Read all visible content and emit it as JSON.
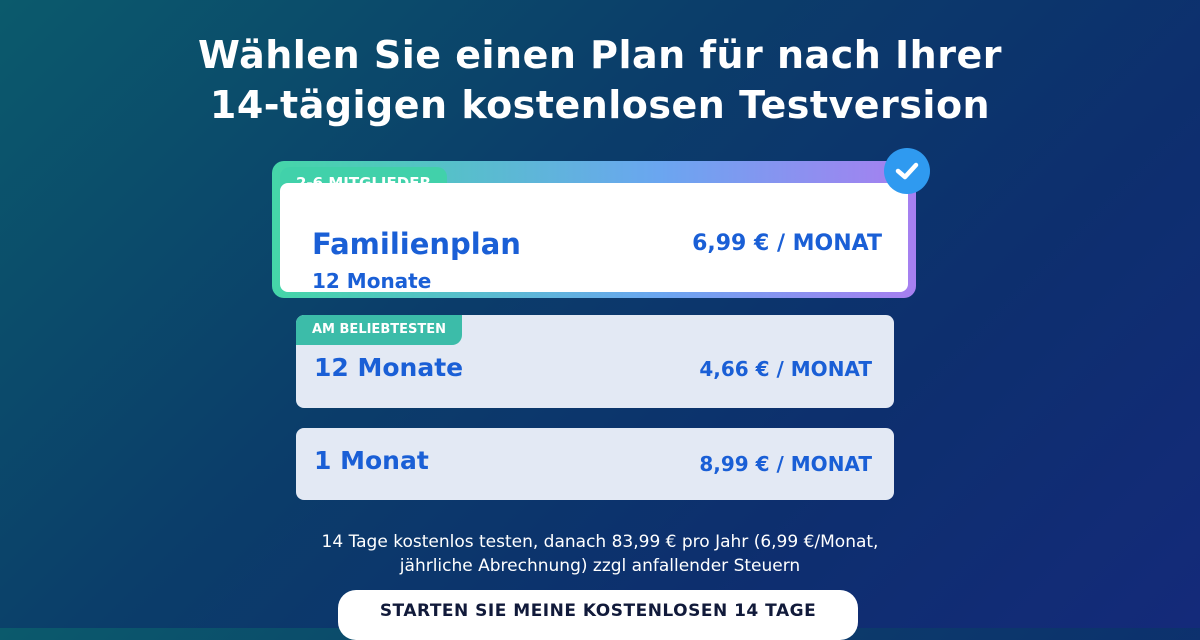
{
  "title_line1": "Wählen Sie einen Plan für nach Ihrer",
  "title_line2": "14-tägigen kostenlosen Testversion",
  "plans": [
    {
      "badge": "2-6 MITGLIEDER",
      "name": "Familienplan",
      "duration": "12 Monate",
      "price": "6,99 € / MONAT",
      "selected": true
    },
    {
      "badge": "AM BELIEBTESTEN",
      "name": "12 Monate",
      "price": "4,66 € / MONAT",
      "selected": false
    },
    {
      "name": "1 Monat",
      "price": "8,99 € / MONAT",
      "selected": false
    }
  ],
  "note_line1": "14 Tage kostenlos testen, danach 83,99 € pro Jahr (6,99 €/Monat,",
  "note_line2": "jährliche Abrechnung) zzgl  anfallender Steuern",
  "cta_label": "STARTEN SIE MEINE KOSTENLOSEN 14 TAGE",
  "colors": {
    "accent": "#1a5fd6",
    "badge": "#41d1aa",
    "check": "#2f9af0"
  }
}
